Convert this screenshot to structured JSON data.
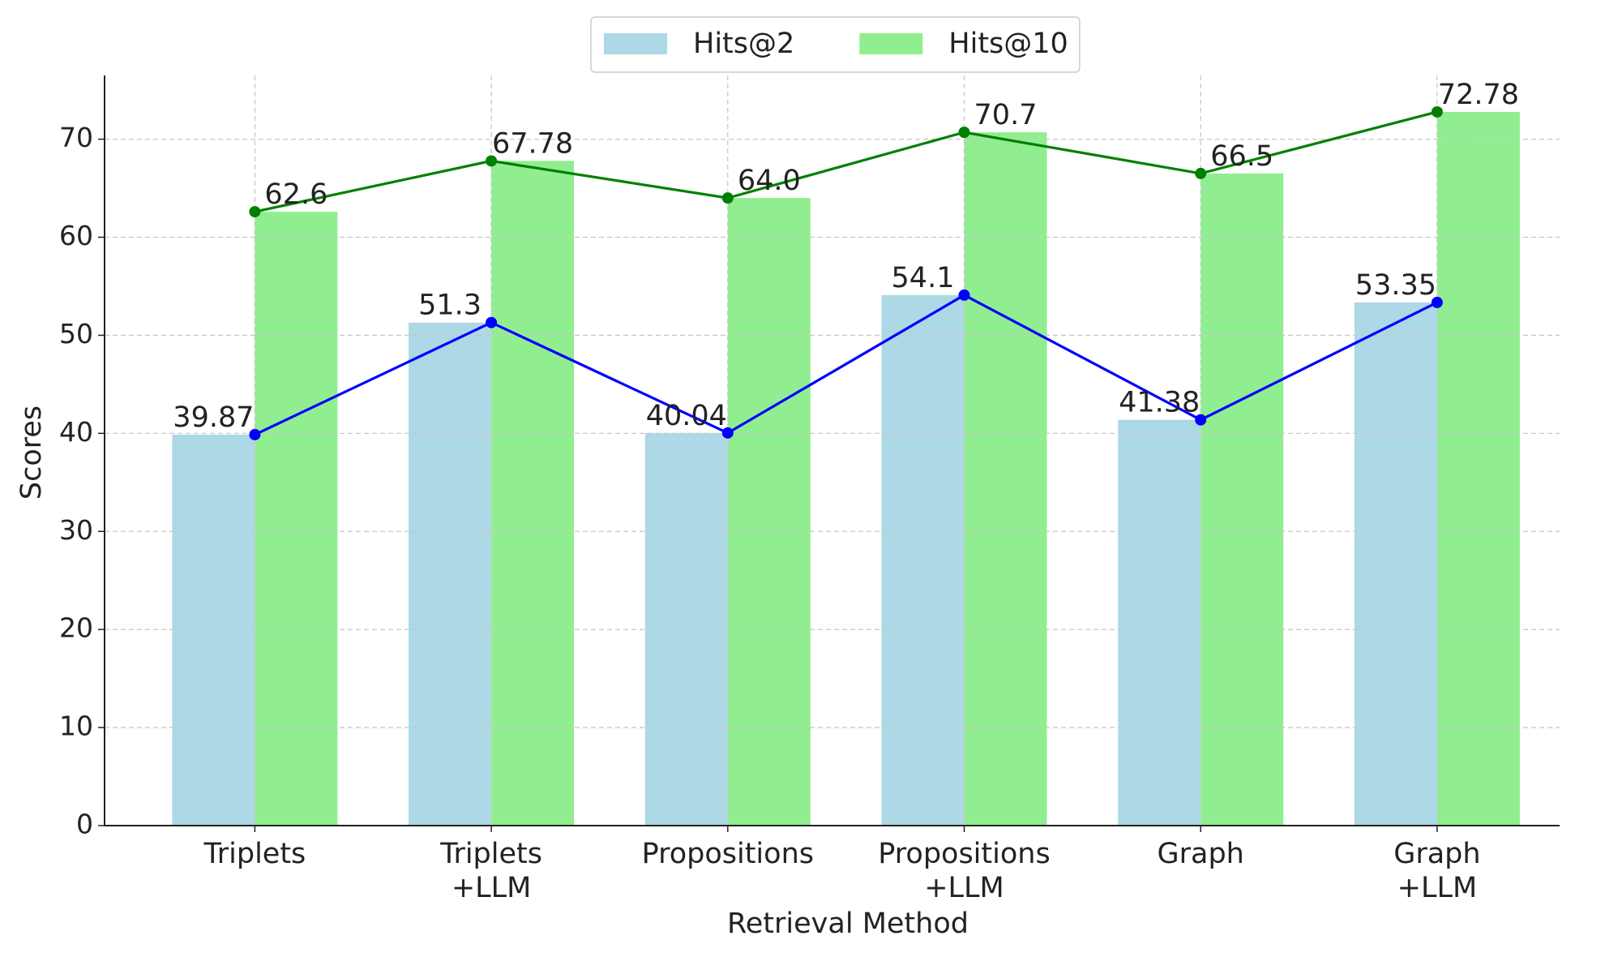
{
  "chart_data": {
    "type": "bar_line",
    "xlabel": "Retrieval Method",
    "ylabel": "Scores",
    "categories": [
      "Triplets",
      "Triplets\n+LLM",
      "Propositions",
      "Propositions\n+LLM",
      "Graph",
      "Graph\n+LLM"
    ],
    "series": [
      {
        "name": "Hits@2",
        "color": "#add8e6",
        "line_color": "#0000ff",
        "values": [
          39.87,
          51.3,
          40.04,
          54.1,
          41.38,
          53.35
        ],
        "value_labels": [
          "39.87",
          "51.3",
          "40.04",
          "54.1",
          "41.38",
          "53.35"
        ]
      },
      {
        "name": "Hits@10",
        "color": "#90ee90",
        "line_color": "#008000",
        "values": [
          62.6,
          67.78,
          64,
          70.7,
          66.5,
          72.78
        ],
        "value_labels": [
          "62.6",
          "67.78",
          "64.0",
          "70.7",
          "66.5",
          "72.78"
        ]
      }
    ],
    "ylim": [
      0,
      76.5
    ],
    "yticks": [
      0,
      10,
      20,
      30,
      40,
      50,
      60,
      70
    ],
    "grid": true,
    "legend": "top"
  }
}
